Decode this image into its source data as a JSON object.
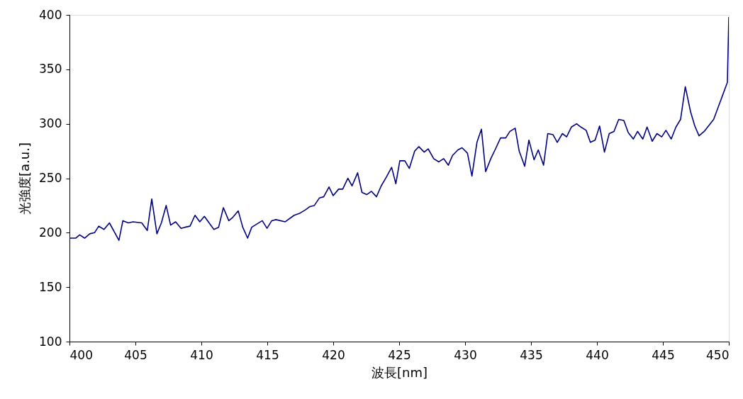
{
  "chart_data": {
    "type": "line",
    "xlabel": "波長[nm]",
    "ylabel": "光強度[a.u.]",
    "xlim": [
      400,
      450
    ],
    "ylim": [
      100,
      400
    ],
    "xticks": [
      400,
      405,
      410,
      415,
      420,
      425,
      430,
      435,
      440,
      445,
      450
    ],
    "yticks": [
      100,
      150,
      200,
      250,
      300,
      350,
      400
    ],
    "grid": false,
    "marker": "none",
    "line_style": "solid",
    "series": [
      {
        "color": "#000080",
        "x": [
          400.0,
          400.47,
          400.77,
          401.15,
          401.54,
          401.9,
          402.22,
          402.62,
          403.03,
          403.75,
          404.05,
          404.46,
          404.82,
          405.48,
          405.9,
          406.24,
          406.63,
          406.97,
          407.33,
          407.67,
          408.05,
          408.46,
          408.76,
          409.14,
          409.52,
          409.88,
          410.23,
          410.95,
          411.31,
          411.67,
          412.08,
          412.38,
          412.8,
          413.14,
          413.51,
          413.82,
          414.62,
          414.98,
          415.34,
          415.65,
          416.36,
          417.04,
          417.49,
          417.89,
          418.24,
          418.57,
          418.96,
          419.28,
          419.68,
          420.0,
          420.41,
          420.72,
          421.11,
          421.43,
          421.85,
          422.18,
          422.54,
          422.9,
          423.28,
          423.64,
          424.03,
          424.43,
          424.75,
          425.05,
          425.43,
          425.77,
          426.18,
          426.49,
          426.9,
          427.2,
          427.62,
          428.01,
          428.37,
          428.73,
          429.05,
          429.46,
          429.77,
          430.18,
          430.52,
          430.9,
          431.24,
          431.56,
          431.95,
          432.31,
          432.69,
          433.08,
          433.4,
          433.8,
          434.1,
          434.52,
          434.84,
          435.23,
          435.55,
          435.95,
          436.27,
          436.67,
          436.99,
          437.38,
          437.7,
          438.06,
          438.46,
          438.78,
          439.18,
          439.5,
          439.86,
          440.2,
          440.57,
          440.93,
          441.29,
          441.65,
          442.04,
          442.37,
          442.76,
          443.08,
          443.48,
          443.8,
          444.19,
          444.55,
          444.91,
          445.23,
          445.63,
          445.99,
          446.34,
          446.7,
          447.1,
          447.42,
          447.74,
          448.13,
          448.85,
          449.89,
          450.0
        ],
        "values": [
          195,
          195,
          198,
          195,
          199,
          200,
          206,
          203,
          209,
          193,
          211,
          209,
          210,
          209,
          202,
          231,
          199,
          209,
          225,
          207,
          210,
          204,
          205,
          206,
          216,
          210,
          215,
          203,
          205,
          223,
          211,
          214,
          220,
          205,
          195,
          205,
          211,
          204,
          211,
          212,
          210,
          216,
          218,
          221,
          224,
          225,
          232,
          233,
          242,
          234,
          240,
          240,
          250,
          243,
          255,
          237,
          235,
          238,
          233,
          243,
          251,
          260,
          245,
          266,
          266,
          259,
          275,
          279,
          274,
          277,
          268,
          265,
          268,
          262,
          271,
          276,
          278,
          273,
          252,
          283,
          295,
          256,
          268,
          277,
          287,
          287,
          293,
          296,
          275,
          261,
          285,
          267,
          276,
          262,
          291,
          290,
          283,
          291,
          288,
          297,
          300,
          297,
          294,
          283,
          285,
          298,
          274,
          291,
          293,
          304,
          303,
          292,
          286,
          293,
          286,
          297,
          284,
          291,
          288,
          294,
          286,
          297,
          304,
          334,
          311,
          298,
          289,
          293,
          304,
          338,
          398
        ]
      }
    ]
  }
}
